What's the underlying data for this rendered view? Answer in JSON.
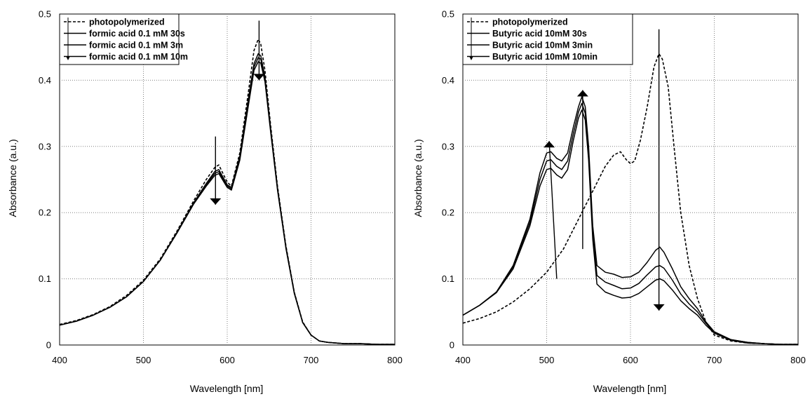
{
  "chart_data": [
    {
      "type": "line",
      "title": "",
      "xlabel": "Wavelength [nm]",
      "ylabel": "Absorbance (a.u.)",
      "xlim": [
        400,
        800
      ],
      "ylim": [
        0,
        0.5
      ],
      "xticks": [
        "400",
        "500",
        "600",
        "700",
        "800"
      ],
      "yticks": [
        "0",
        "0.1",
        "0.2",
        "0.3",
        "0.4",
        "0.5"
      ],
      "grid": true,
      "legend": "top-left",
      "series": [
        {
          "name": "photopolymerized",
          "style": "dashed",
          "x": [
            400,
            420,
            440,
            460,
            480,
            500,
            520,
            540,
            560,
            575,
            585,
            590,
            600,
            605,
            615,
            625,
            632,
            637,
            640,
            645,
            652,
            660,
            670,
            680,
            690,
            700,
            710,
            720,
            740,
            760,
            780,
            800
          ],
          "y": [
            0.031,
            0.037,
            0.046,
            0.058,
            0.075,
            0.098,
            0.13,
            0.172,
            0.218,
            0.25,
            0.268,
            0.272,
            0.246,
            0.24,
            0.29,
            0.38,
            0.445,
            0.462,
            0.455,
            0.415,
            0.33,
            0.24,
            0.15,
            0.08,
            0.035,
            0.015,
            0.006,
            0.004,
            0.002,
            0.002,
            0.001,
            0.001
          ]
        },
        {
          "name": "formic acid 0.1 mM 30s",
          "style": "solid",
          "x": [
            400,
            420,
            440,
            460,
            480,
            500,
            520,
            540,
            560,
            575,
            585,
            590,
            600,
            605,
            615,
            625,
            632,
            637,
            640,
            645,
            652,
            660,
            670,
            680,
            690,
            700,
            710,
            720,
            740,
            760,
            780,
            800
          ],
          "y": [
            0.03,
            0.036,
            0.045,
            0.057,
            0.073,
            0.096,
            0.128,
            0.17,
            0.215,
            0.244,
            0.262,
            0.265,
            0.242,
            0.238,
            0.285,
            0.37,
            0.425,
            0.44,
            0.437,
            0.405,
            0.325,
            0.237,
            0.148,
            0.079,
            0.034,
            0.015,
            0.006,
            0.004,
            0.002,
            0.002,
            0.001,
            0.001
          ]
        },
        {
          "name": "formic acid 0.1 mM 3m",
          "style": "solid",
          "x": [
            400,
            420,
            440,
            460,
            480,
            500,
            520,
            540,
            560,
            575,
            585,
            590,
            600,
            605,
            615,
            625,
            632,
            637,
            640,
            645,
            652,
            660,
            670,
            680,
            690,
            700,
            710,
            720,
            740,
            760,
            780,
            800
          ],
          "y": [
            0.03,
            0.036,
            0.045,
            0.057,
            0.073,
            0.096,
            0.128,
            0.17,
            0.214,
            0.242,
            0.259,
            0.262,
            0.24,
            0.236,
            0.282,
            0.365,
            0.42,
            0.434,
            0.432,
            0.402,
            0.323,
            0.236,
            0.147,
            0.079,
            0.034,
            0.015,
            0.006,
            0.004,
            0.002,
            0.002,
            0.001,
            0.001
          ]
        },
        {
          "name": "formic acid 0.1 mM 10m",
          "style": "solid",
          "x": [
            400,
            420,
            440,
            460,
            480,
            500,
            520,
            540,
            560,
            575,
            585,
            590,
            600,
            605,
            615,
            625,
            632,
            637,
            640,
            645,
            652,
            660,
            670,
            680,
            690,
            700,
            710,
            720,
            740,
            760,
            780,
            800
          ],
          "y": [
            0.03,
            0.036,
            0.045,
            0.057,
            0.073,
            0.096,
            0.128,
            0.169,
            0.213,
            0.24,
            0.256,
            0.259,
            0.238,
            0.234,
            0.279,
            0.36,
            0.415,
            0.428,
            0.426,
            0.398,
            0.32,
            0.234,
            0.146,
            0.078,
            0.034,
            0.015,
            0.006,
            0.004,
            0.002,
            0.002,
            0.001,
            0.001
          ]
        }
      ],
      "annotations": [
        {
          "type": "arrow-down",
          "x": 586,
          "y_from": 0.315,
          "y_to": 0.212
        },
        {
          "type": "arrow-down",
          "x": 638,
          "y_from": 0.49,
          "y_to": 0.4
        }
      ]
    },
    {
      "type": "line",
      "title": "",
      "xlabel": "Wavelength [nm]",
      "ylabel": "Absorbance (a.u.)",
      "xlim": [
        400,
        800
      ],
      "ylim": [
        0,
        0.5
      ],
      "xticks": [
        "400",
        "500",
        "600",
        "700",
        "800"
      ],
      "yticks": [
        "0",
        "0.1",
        "0.2",
        "0.3",
        "0.4",
        "0.5"
      ],
      "grid": true,
      "legend": "top-left",
      "series": [
        {
          "name": "photopolymerized",
          "style": "dashed",
          "x": [
            400,
            420,
            440,
            460,
            480,
            500,
            520,
            540,
            560,
            570,
            580,
            588,
            595,
            600,
            605,
            612,
            620,
            628,
            634,
            638,
            645,
            652,
            660,
            670,
            680,
            690,
            700,
            720,
            740,
            760,
            780,
            800
          ],
          "y": [
            0.033,
            0.04,
            0.05,
            0.065,
            0.085,
            0.11,
            0.145,
            0.195,
            0.245,
            0.27,
            0.287,
            0.292,
            0.28,
            0.274,
            0.278,
            0.31,
            0.36,
            0.42,
            0.44,
            0.432,
            0.39,
            0.3,
            0.2,
            0.12,
            0.07,
            0.035,
            0.015,
            0.006,
            0.003,
            0.002,
            0.001,
            0.001
          ]
        },
        {
          "name": "Butyric acid 10mM 30s",
          "style": "solid",
          "x": [
            400,
            420,
            440,
            460,
            480,
            492,
            500,
            505,
            512,
            518,
            525,
            532,
            538,
            542,
            546,
            550,
            555,
            560,
            570,
            580,
            590,
            600,
            610,
            620,
            630,
            635,
            640,
            650,
            660,
            670,
            680,
            690,
            700,
            720,
            740,
            760,
            780,
            800
          ],
          "y": [
            0.045,
            0.06,
            0.08,
            0.12,
            0.19,
            0.26,
            0.29,
            0.292,
            0.282,
            0.278,
            0.29,
            0.33,
            0.36,
            0.375,
            0.36,
            0.3,
            0.18,
            0.12,
            0.11,
            0.107,
            0.102,
            0.103,
            0.11,
            0.125,
            0.143,
            0.148,
            0.14,
            0.115,
            0.088,
            0.07,
            0.055,
            0.035,
            0.02,
            0.008,
            0.004,
            0.002,
            0.001,
            0.001
          ]
        },
        {
          "name": "Butyric acid 10mM 3min",
          "style": "solid",
          "x": [
            400,
            420,
            440,
            460,
            480,
            492,
            500,
            505,
            512,
            518,
            525,
            532,
            538,
            542,
            546,
            550,
            555,
            560,
            570,
            580,
            590,
            600,
            610,
            620,
            630,
            635,
            640,
            650,
            660,
            670,
            680,
            690,
            700,
            720,
            740,
            760,
            780,
            800
          ],
          "y": [
            0.045,
            0.06,
            0.08,
            0.118,
            0.185,
            0.25,
            0.278,
            0.28,
            0.27,
            0.265,
            0.278,
            0.32,
            0.352,
            0.365,
            0.35,
            0.29,
            0.17,
            0.105,
            0.095,
            0.09,
            0.085,
            0.086,
            0.093,
            0.106,
            0.118,
            0.12,
            0.116,
            0.098,
            0.077,
            0.062,
            0.05,
            0.033,
            0.019,
            0.008,
            0.004,
            0.002,
            0.001,
            0.001
          ]
        },
        {
          "name": "Butyric acid 10mM 10min",
          "style": "solid",
          "x": [
            400,
            420,
            440,
            460,
            480,
            492,
            500,
            505,
            512,
            518,
            525,
            532,
            538,
            542,
            546,
            550,
            555,
            560,
            570,
            580,
            590,
            600,
            610,
            620,
            630,
            635,
            640,
            650,
            660,
            670,
            680,
            690,
            700,
            720,
            740,
            760,
            780,
            800
          ],
          "y": [
            0.045,
            0.06,
            0.079,
            0.115,
            0.18,
            0.24,
            0.265,
            0.267,
            0.257,
            0.252,
            0.265,
            0.31,
            0.343,
            0.355,
            0.34,
            0.28,
            0.16,
            0.092,
            0.08,
            0.075,
            0.071,
            0.072,
            0.078,
            0.088,
            0.098,
            0.1,
            0.097,
            0.083,
            0.067,
            0.055,
            0.045,
            0.03,
            0.018,
            0.007,
            0.003,
            0.002,
            0.001,
            0.001
          ]
        }
      ],
      "annotations": [
        {
          "type": "arrow-up",
          "x": 503,
          "x_from": 512,
          "y_from": 0.1,
          "y_to": 0.308
        },
        {
          "type": "arrow-up",
          "x": 543,
          "y_from": 0.145,
          "y_to": 0.385
        },
        {
          "type": "arrow-down",
          "x": 634,
          "y_from": 0.477,
          "y_to": 0.052
        }
      ]
    }
  ]
}
